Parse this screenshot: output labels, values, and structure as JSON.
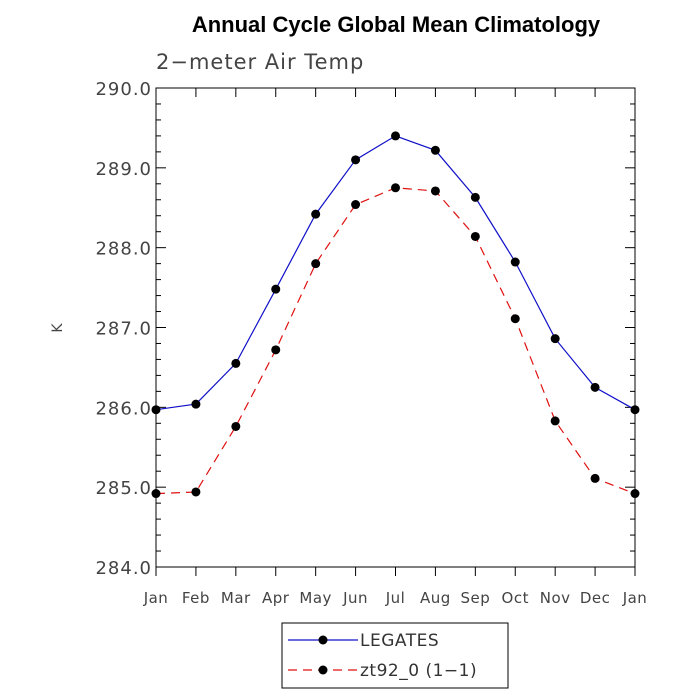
{
  "chart_data": {
    "type": "line",
    "title": "Annual Cycle Global Mean Climatology",
    "subtitle": "2−meter Air Temp",
    "xlabel": "",
    "ylabel": "K",
    "categories": [
      "Jan",
      "Feb",
      "Mar",
      "Apr",
      "May",
      "Jun",
      "Jul",
      "Aug",
      "Sep",
      "Oct",
      "Nov",
      "Dec",
      "Jan"
    ],
    "ylim": [
      284.0,
      290.0
    ],
    "yticks": [
      "284.0",
      "285.0",
      "286.0",
      "287.0",
      "288.0",
      "289.0",
      "290.0"
    ],
    "grid": false,
    "legend_position": "bottom-center",
    "series": [
      {
        "name": "LEGATES",
        "color": "#1010c8",
        "line_style": "solid",
        "marker": "filled-circle",
        "values": [
          285.97,
          286.04,
          286.55,
          287.48,
          288.42,
          289.1,
          289.4,
          289.22,
          288.63,
          287.82,
          286.86,
          286.25,
          285.97
        ]
      },
      {
        "name": "zt92_0 (1−1)",
        "color": "#e01010",
        "line_style": "dashed",
        "marker": "filled-circle",
        "values": [
          284.92,
          284.94,
          285.76,
          286.72,
          287.8,
          288.54,
          288.75,
          288.71,
          288.14,
          287.11,
          285.83,
          285.11,
          284.92
        ]
      }
    ]
  }
}
